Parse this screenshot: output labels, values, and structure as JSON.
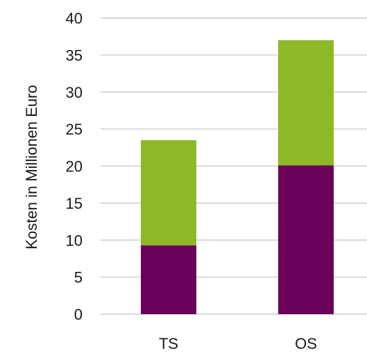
{
  "chart_data": {
    "type": "bar",
    "stacked": true,
    "title": "",
    "xlabel": "",
    "ylabel": "Kosten in Millionen Euro",
    "categories": [
      "TS",
      "OS"
    ],
    "series": [
      {
        "values": [
          9.3,
          20.1
        ],
        "color": "#6a0057"
      },
      {
        "values": [
          14.2,
          16.9
        ],
        "color": "#8db828"
      }
    ],
    "ylim": [
      0,
      40
    ],
    "yticks": [
      0,
      5,
      10,
      15,
      20,
      25,
      30,
      35,
      40
    ],
    "grid": true,
    "legend": "none"
  }
}
